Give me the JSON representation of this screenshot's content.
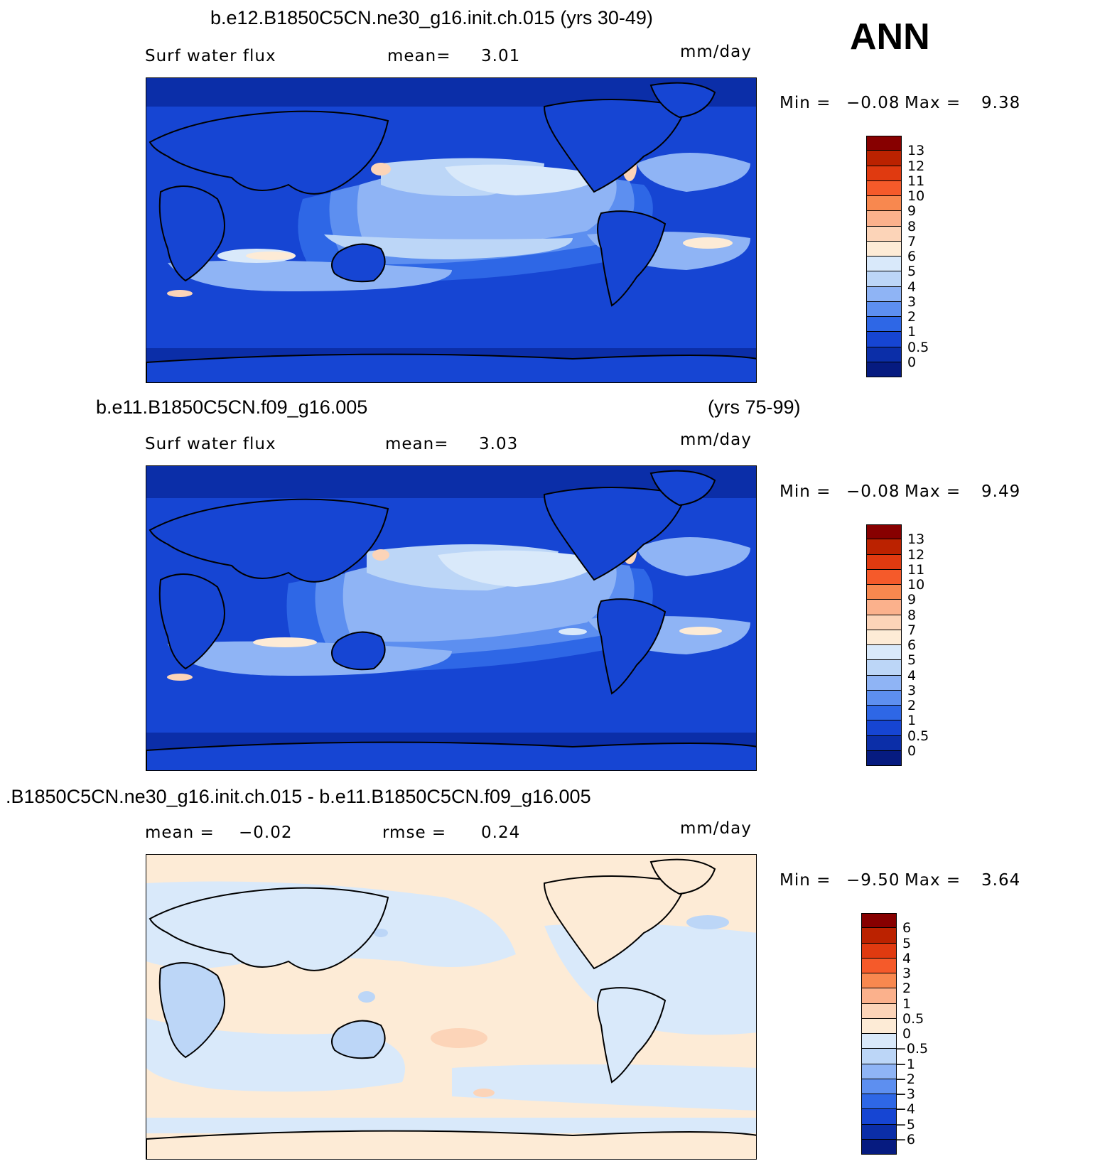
{
  "season": "ANN",
  "panels": [
    {
      "title": "b.e12.B1850C5CN.ne30_g16.init.ch.015 (yrs 30-49)",
      "left_label": "Surf water flux",
      "center_label": "mean=",
      "center_value": "3.01",
      "units": "mm/day",
      "min_label": "Min =",
      "min_value": "−0.08",
      "max_label": "Max =",
      "max_value": "9.38",
      "colorbar": {
        "ticks": [
          "13",
          "12",
          "11",
          "10",
          "9",
          "8",
          "7",
          "6",
          "5",
          "4",
          "3",
          "2",
          "1",
          "0.5",
          "0"
        ],
        "colors": [
          "#870000",
          "#bb2200",
          "#e03a10",
          "#f55a2a",
          "#f8884f",
          "#fbb18c",
          "#fcd4b8",
          "#fdebd6",
          "#d9e9fa",
          "#bcd6f7",
          "#8fb4f5",
          "#5d8ff0",
          "#2e67e6",
          "#1645d3",
          "#0b2ea8",
          "#061b80"
        ]
      }
    },
    {
      "title": "b.e11.B1850C5CN.f09_g16.005",
      "title_right": "(yrs 75-99)",
      "left_label": "Surf water flux",
      "center_label": "mean=",
      "center_value": "3.03",
      "units": "mm/day",
      "min_label": "Min =",
      "min_value": "−0.08",
      "max_label": "Max =",
      "max_value": "9.49",
      "colorbar": {
        "ticks": [
          "13",
          "12",
          "11",
          "10",
          "9",
          "8",
          "7",
          "6",
          "5",
          "4",
          "3",
          "2",
          "1",
          "0.5",
          "0"
        ],
        "colors": [
          "#870000",
          "#bb2200",
          "#e03a10",
          "#f55a2a",
          "#f8884f",
          "#fbb18c",
          "#fcd4b8",
          "#fdebd6",
          "#d9e9fa",
          "#bcd6f7",
          "#8fb4f5",
          "#5d8ff0",
          "#2e67e6",
          "#1645d3",
          "#0b2ea8",
          "#061b80"
        ]
      }
    },
    {
      "title": ".B1850C5CN.ne30_g16.init.ch.015 - b.e11.B1850C5CN.f09_g16.005",
      "left_label": "mean =",
      "left_value": "−0.02",
      "center_label": "rmse =",
      "center_value": "0.24",
      "units": "mm/day",
      "min_label": "Min =",
      "min_value": "−9.50",
      "max_label": "Max =",
      "max_value": "3.64",
      "colorbar": {
        "ticks": [
          "6",
          "5",
          "4",
          "3",
          "2",
          "1",
          "0.5",
          "0",
          "−0.5",
          "−1",
          "−2",
          "−3",
          "−4",
          "−5",
          "−6"
        ],
        "colors": [
          "#870000",
          "#bb2200",
          "#e03a10",
          "#f55a2a",
          "#f8884f",
          "#fbb18c",
          "#fcd4b8",
          "#fdebd6",
          "#d9e9fa",
          "#bcd6f7",
          "#8fb4f5",
          "#5d8ff0",
          "#2e67e6",
          "#1645d3",
          "#0b2ea8",
          "#061b80"
        ]
      }
    }
  ]
}
